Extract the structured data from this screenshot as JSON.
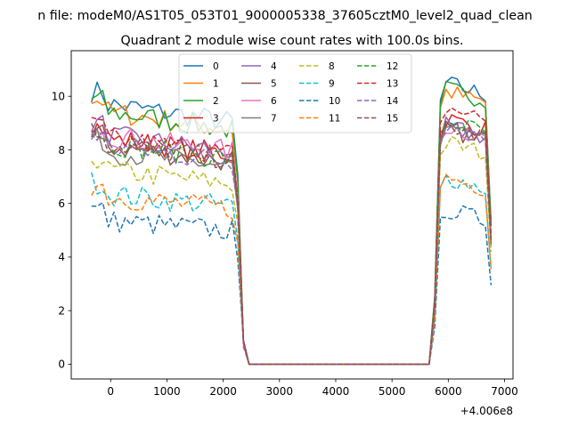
{
  "chart_data": {
    "type": "line",
    "suptitle": "n file: modeM0/AS1T05_053T01_9000005338_37605cztM0_level2_quad_clean",
    "title": "Quadrant 2 module wise count rates with 100.0s bins.",
    "xlabel": "",
    "ylabel": "",
    "x_offset_label": "+4.006e8",
    "xlim": [
      -700,
      7150
    ],
    "ylim": [
      -0.55,
      11.7
    ],
    "xticks": [
      0,
      1000,
      2000,
      3000,
      4000,
      5000,
      6000,
      7000
    ],
    "xtick_labels": [
      "0",
      "1000",
      "2000",
      "3000",
      "4000",
      "5000",
      "6000",
      "7000"
    ],
    "yticks": [
      0,
      2,
      4,
      6,
      8,
      10
    ],
    "ytick_labels": [
      "0",
      "2",
      "4",
      "6",
      "8",
      "10"
    ],
    "legend_position": "top-center",
    "x_start": -340,
    "bin_width": 100,
    "gap_start_bin": 26,
    "gap_end_bin": 61,
    "series": [
      {
        "name": "0",
        "color": "#1f77b4",
        "dash": "solid",
        "level1": 9.8,
        "level2": 10.6
      },
      {
        "name": "1",
        "color": "#ff7f0e",
        "dash": "solid",
        "level1": 9.5,
        "level2": 10.3
      },
      {
        "name": "2",
        "color": "#2ca02c",
        "dash": "solid",
        "level1": 9.5,
        "level2": 10.4
      },
      {
        "name": "3",
        "color": "#d62728",
        "dash": "solid",
        "level1": 8.5,
        "level2": 9.3
      },
      {
        "name": "4",
        "color": "#9467bd",
        "dash": "solid",
        "level1": 8.6,
        "level2": 9.0
      },
      {
        "name": "5",
        "color": "#8c564b",
        "dash": "solid",
        "level1": 8.2,
        "level2": 8.9
      },
      {
        "name": "6",
        "color": "#e377c2",
        "dash": "solid",
        "level1": 8.6,
        "level2": 9.0
      },
      {
        "name": "7",
        "color": "#7f7f7f",
        "dash": "solid",
        "level1": 8.0,
        "level2": 8.8
      },
      {
        "name": "8",
        "color": "#bcbd22",
        "dash": "dashed",
        "level1": 7.3,
        "level2": 8.4
      },
      {
        "name": "9",
        "color": "#17becf",
        "dash": "dashed",
        "level1": 6.4,
        "level2": 7.1
      },
      {
        "name": "10",
        "color": "#1f77b4",
        "dash": "dashed",
        "level1": 5.4,
        "level2": 5.9
      },
      {
        "name": "11",
        "color": "#ff7f0e",
        "dash": "dashed",
        "level1": 6.3,
        "level2": 7.1
      },
      {
        "name": "12",
        "color": "#2ca02c",
        "dash": "dashed",
        "level1": 8.3,
        "level2": 9.2
      },
      {
        "name": "13",
        "color": "#d62728",
        "dash": "dashed",
        "level1": 8.5,
        "level2": 9.7
      },
      {
        "name": "14",
        "color": "#9467bd",
        "dash": "dashed",
        "level1": 8.2,
        "level2": 9.1
      },
      {
        "name": "15",
        "color": "#8c564b",
        "dash": "dashed",
        "level1": 8.3,
        "level2": 9.0
      }
    ]
  }
}
